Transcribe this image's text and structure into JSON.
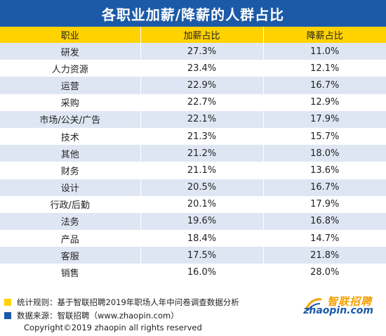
{
  "title": "各职业加薪/降薪的人群占比",
  "table": {
    "headers": [
      "职业",
      "加薪占比",
      "降薪占比"
    ],
    "rows": [
      [
        "研发",
        "27.3%",
        "11.0%"
      ],
      [
        "人力资源",
        "23.4%",
        "12.1%"
      ],
      [
        "运营",
        "22.9%",
        "16.7%"
      ],
      [
        "采购",
        "22.7%",
        "12.9%"
      ],
      [
        "市场/公关/广告",
        "22.1%",
        "17.9%"
      ],
      [
        "技术",
        "21.3%",
        "15.7%"
      ],
      [
        "其他",
        "21.2%",
        "18.0%"
      ],
      [
        "财务",
        "21.1%",
        "13.6%"
      ],
      [
        "设计",
        "20.5%",
        "16.7%"
      ],
      [
        "行政/后勤",
        "20.1%",
        "17.9%"
      ],
      [
        "法务",
        "19.6%",
        "16.8%"
      ],
      [
        "产品",
        "18.4%",
        "14.7%"
      ],
      [
        "客服",
        "17.5%",
        "21.8%"
      ],
      [
        "销售",
        "16.0%",
        "28.0%"
      ]
    ]
  },
  "notes": [
    {
      "text": "统计规则：基于智联招聘2019年职场人年中问卷调查数据分析",
      "color": "#ffd200"
    },
    {
      "text": "数据来源：智联招聘（www.zhaopin.com）",
      "color": "#1c5aa8"
    }
  ],
  "copyright": "Copyright©2019 zhaopin all rights reserved",
  "logo": {
    "cn": "智联招聘",
    "en": "zhaopin.com",
    "colors": {
      "cn": "#f5a000",
      "en": "#1c5aa8"
    }
  },
  "colors": {
    "title_bg": "#1c5aa8",
    "header_bg": "#ffd200",
    "stripe": "#dfe6f3"
  }
}
